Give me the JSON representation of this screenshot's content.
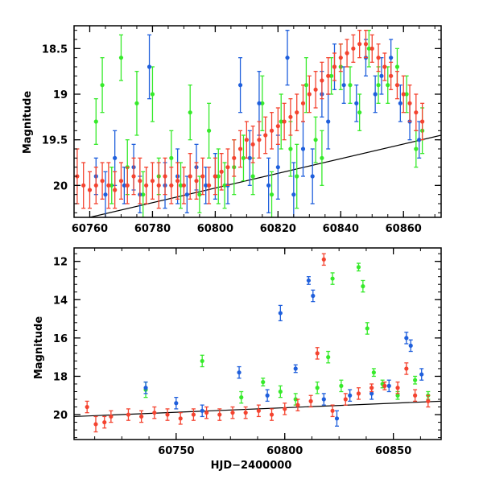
{
  "colors": {
    "red": "#f4432f",
    "blue": "#1f5fdc",
    "green": "#36ea2a",
    "frame": "#000000"
  },
  "chart_data": [
    {
      "type": "scatter",
      "panel": "top",
      "title": "",
      "xlabel": "",
      "ylabel": "Magnitude",
      "xlim": [
        60755,
        60872
      ],
      "ylim": [
        20.35,
        18.25
      ],
      "y_inverted": true,
      "x_ticks": [
        60760,
        60780,
        60800,
        60820,
        60840,
        60860
      ],
      "y_ticks": [
        18.5,
        19,
        19.5,
        20
      ],
      "x_tick_labels": [
        "60760",
        "60780",
        "60800",
        "60820",
        "60840",
        "60860"
      ],
      "y_tick_labels": [
        "18.5",
        "19",
        "19.5",
        "20"
      ],
      "series": [
        {
          "color_key": "green",
          "x": [
            60762,
            60764,
            60767,
            60770,
            60772,
            60775,
            60777,
            60780,
            60782,
            60786,
            60789,
            60792,
            60795,
            60798,
            60801,
            60803,
            60806,
            60809,
            60812,
            60815,
            60818,
            60821,
            60824,
            60826,
            60829,
            60832,
            60834,
            60837,
            60840,
            60843,
            60846,
            60849,
            60852,
            60855,
            60858,
            60861,
            60864,
            60866
          ],
          "y": [
            19.3,
            18.9,
            20.0,
            18.6,
            19.8,
            19.1,
            20.1,
            19.0,
            19.9,
            19.7,
            20.0,
            19.2,
            20.1,
            19.4,
            19.9,
            20.0,
            19.8,
            19.7,
            19.9,
            19.1,
            20.1,
            19.3,
            19.6,
            19.9,
            18.9,
            19.5,
            19.7,
            18.8,
            18.7,
            18.9,
            19.2,
            18.5,
            18.9,
            18.9,
            18.7,
            19.0,
            19.6,
            19.4
          ],
          "err": [
            0.25,
            0.3,
            0.2,
            0.25,
            0.3,
            0.35,
            0.25,
            0.3,
            0.2,
            0.3,
            0.25,
            0.3,
            0.2,
            0.3,
            0.3,
            0.25,
            0.3,
            0.25,
            0.2,
            0.3,
            0.25,
            0.3,
            0.3,
            0.35,
            0.3,
            0.25,
            0.3,
            0.2,
            0.25,
            0.2,
            0.2,
            0.2,
            0.2,
            0.2,
            0.2,
            0.2,
            0.2,
            0.25
          ]
        },
        {
          "color_key": "blue",
          "x": [
            60762,
            60765,
            60768,
            60771,
            60774,
            60776,
            60779,
            60784,
            60788,
            60791,
            60794,
            60797,
            60800,
            60804,
            60808,
            60811,
            60814,
            60817,
            60820,
            60823,
            60825,
            60828,
            60831,
            60834,
            60836,
            60838,
            60841,
            60845,
            60848,
            60851,
            60853,
            60856,
            60859,
            60862,
            60865
          ],
          "y": [
            19.9,
            20.1,
            19.7,
            20.0,
            19.8,
            20.1,
            18.7,
            20.0,
            19.9,
            20.1,
            19.8,
            20.0,
            19.9,
            20.0,
            18.9,
            19.7,
            19.1,
            20.0,
            19.8,
            18.6,
            20.1,
            19.6,
            19.9,
            19.0,
            19.3,
            18.7,
            18.9,
            19.1,
            18.6,
            19.0,
            18.8,
            18.6,
            19.1,
            19.3,
            19.5
          ],
          "err": [
            0.2,
            0.25,
            0.3,
            0.2,
            0.25,
            0.2,
            0.35,
            0.25,
            0.3,
            0.2,
            0.25,
            0.2,
            0.25,
            0.2,
            0.3,
            0.3,
            0.35,
            0.3,
            0.35,
            0.3,
            0.35,
            0.3,
            0.3,
            0.25,
            0.3,
            0.25,
            0.2,
            0.2,
            0.2,
            0.2,
            0.2,
            0.2,
            0.2,
            0.2,
            0.2
          ]
        },
        {
          "color_key": "red",
          "x": [
            60756,
            60758,
            60760,
            60762,
            60764,
            60766,
            60768,
            60770,
            60772,
            60774,
            60776,
            60778,
            60780,
            60782,
            60784,
            60786,
            60788,
            60790,
            60792,
            60794,
            60796,
            60798,
            60800,
            60802,
            60804,
            60806,
            60808,
            60810,
            60812,
            60814,
            60816,
            60818,
            60820,
            60822,
            60824,
            60826,
            60828,
            60830,
            60832,
            60834,
            60836,
            60838,
            60840,
            60842,
            60844,
            60846,
            60848,
            60850,
            60852,
            60854,
            60856,
            60858,
            60860,
            60862,
            60864,
            60866
          ],
          "y": [
            19.9,
            20.0,
            20.05,
            20.0,
            19.95,
            20.0,
            20.05,
            19.95,
            20.0,
            19.9,
            19.95,
            20.0,
            19.95,
            20.0,
            19.9,
            20.0,
            19.95,
            20.0,
            19.9,
            19.95,
            19.9,
            20.0,
            19.9,
            19.85,
            19.8,
            19.7,
            19.6,
            19.5,
            19.55,
            19.5,
            19.45,
            19.4,
            19.35,
            19.3,
            19.25,
            19.2,
            19.1,
            19.0,
            18.95,
            18.85,
            18.8,
            18.7,
            18.6,
            18.55,
            18.5,
            18.45,
            18.45,
            18.5,
            18.6,
            18.7,
            18.8,
            18.9,
            19.0,
            19.1,
            19.2,
            19.3
          ],
          "err": [
            0.3,
            0.25,
            0.2,
            0.2,
            0.2,
            0.25,
            0.2,
            0.2,
            0.2,
            0.2,
            0.25,
            0.2,
            0.2,
            0.25,
            0.2,
            0.2,
            0.2,
            0.2,
            0.25,
            0.2,
            0.2,
            0.2,
            0.2,
            0.2,
            0.2,
            0.2,
            0.2,
            0.2,
            0.2,
            0.2,
            0.2,
            0.2,
            0.2,
            0.2,
            0.2,
            0.2,
            0.2,
            0.2,
            0.2,
            0.2,
            0.2,
            0.15,
            0.15,
            0.15,
            0.15,
            0.15,
            0.15,
            0.15,
            0.15,
            0.15,
            0.15,
            0.15,
            0.2,
            0.2,
            0.2,
            0.2
          ]
        }
      ],
      "trend_line": {
        "x": [
          60760,
          60872
        ],
        "y": [
          20.35,
          19.45
        ]
      }
    },
    {
      "type": "scatter",
      "panel": "bottom",
      "title": "",
      "xlabel": "HJD−2400000",
      "ylabel": "Magnitude",
      "xlim": [
        60703,
        60872
      ],
      "ylim": [
        21.3,
        11.3
      ],
      "y_inverted": true,
      "x_ticks": [
        60750,
        60800,
        60850
      ],
      "y_ticks": [
        12,
        14,
        16,
        18,
        20
      ],
      "x_tick_labels": [
        "60750",
        "60800",
        "60850"
      ],
      "y_tick_labels": [
        "12",
        "14",
        "16",
        "18",
        "20"
      ],
      "series": [
        {
          "color_key": "green",
          "x": [
            60736,
            60762,
            60780,
            60790,
            60798,
            60805,
            60815,
            60820,
            60822,
            60826,
            60834,
            60836,
            60838,
            60841,
            60845,
            60852,
            60860,
            60866
          ],
          "y": [
            18.7,
            17.2,
            19.1,
            18.3,
            18.8,
            19.2,
            18.6,
            17.0,
            12.9,
            18.5,
            12.3,
            13.3,
            15.5,
            17.8,
            18.4,
            19.0,
            18.2,
            19.0
          ],
          "err": [
            0.4,
            0.3,
            0.3,
            0.2,
            0.3,
            0.3,
            0.3,
            0.3,
            0.3,
            0.3,
            0.2,
            0.3,
            0.3,
            0.2,
            0.2,
            0.2,
            0.2,
            0.2
          ]
        },
        {
          "color_key": "blue",
          "x": [
            60736,
            60750,
            60762,
            60779,
            60792,
            60798,
            60805,
            60811,
            60813,
            60818,
            60824,
            60830,
            60840,
            60848,
            60856,
            60858,
            60863
          ],
          "y": [
            18.6,
            19.4,
            19.8,
            17.8,
            19.0,
            14.7,
            17.6,
            13.0,
            13.8,
            19.2,
            20.2,
            19.0,
            18.9,
            18.5,
            16.0,
            16.4,
            17.9
          ],
          "err": [
            0.3,
            0.3,
            0.3,
            0.3,
            0.3,
            0.4,
            0.2,
            0.2,
            0.3,
            0.3,
            0.4,
            0.3,
            0.3,
            0.3,
            0.3,
            0.3,
            0.3
          ]
        },
        {
          "color_key": "red",
          "x": [
            60709,
            60713,
            60717,
            60720,
            60728,
            60734,
            60740,
            60746,
            60752,
            60758,
            60764,
            60770,
            60776,
            60782,
            60788,
            60794,
            60800,
            60806,
            60812,
            60815,
            60818,
            60822,
            60828,
            60834,
            60840,
            60846,
            60852,
            60856,
            60860,
            60866
          ],
          "y": [
            19.6,
            20.5,
            20.4,
            20.1,
            20.0,
            20.1,
            19.9,
            20.0,
            20.2,
            20.0,
            19.9,
            20.0,
            19.9,
            19.9,
            19.8,
            20.0,
            19.7,
            19.5,
            19.3,
            16.8,
            11.9,
            19.8,
            19.2,
            18.9,
            18.6,
            18.5,
            18.6,
            17.6,
            19.0,
            19.3
          ],
          "err": [
            0.3,
            0.4,
            0.3,
            0.3,
            0.3,
            0.3,
            0.3,
            0.3,
            0.3,
            0.3,
            0.3,
            0.3,
            0.3,
            0.3,
            0.3,
            0.3,
            0.3,
            0.3,
            0.3,
            0.3,
            0.3,
            0.3,
            0.3,
            0.3,
            0.2,
            0.2,
            0.3,
            0.3,
            0.3,
            0.3
          ]
        }
      ],
      "trend_line": {
        "x": [
          60703,
          60872
        ],
        "y": [
          20.1,
          19.3
        ]
      }
    }
  ]
}
